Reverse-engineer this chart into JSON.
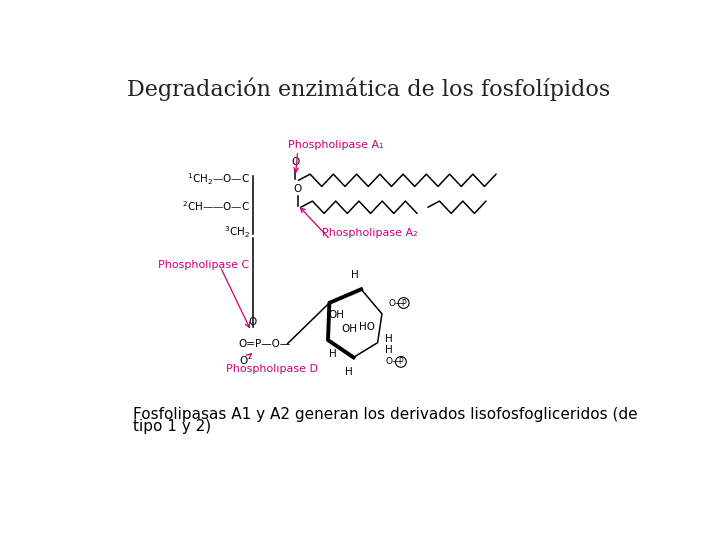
{
  "title": "Degradación enzimática de los fosfolípidos",
  "title_fontsize": 16,
  "title_color": "#222222",
  "background_color": "#ffffff",
  "caption_line1": "Fosfolipasas A1 y A2 generan los derivados lisofosfogliceridos (de",
  "caption_line2": "tipo 1 y 2)",
  "caption_fontsize": 11,
  "label_color": "#cc0077",
  "line_color": "#000000",
  "phospholipase_a1_label": "Phospholipase A₁",
  "phospholipase_a2_label": "Phospholipase A₂",
  "phospholipase_c_label": "Phospholipase C",
  "phospholipase_d_label": "Phospholıpase D",
  "struct_fontsize": 7.5,
  "label_fontsize": 8
}
